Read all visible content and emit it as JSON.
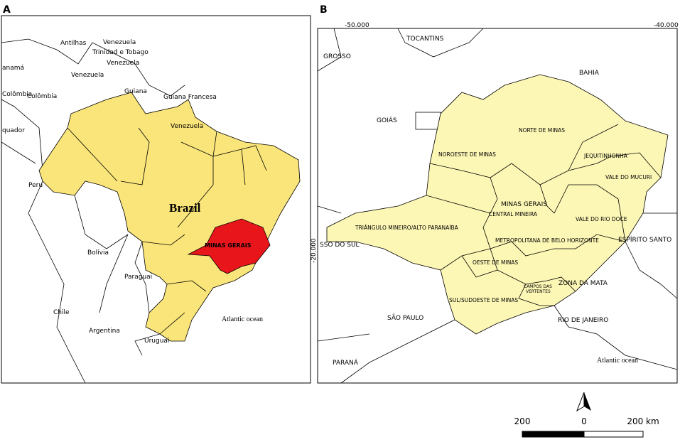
{
  "panel_a": {
    "label": "A",
    "labels": [
      "Antilhas",
      "Venezuela",
      "Trinidad e Tobago",
      "Venezuela",
      "Venezuela",
      "Guiana",
      "Guiana Francesa",
      "Colômbia",
      "Colômbia",
      "quador",
      "Peru",
      "Venezuela",
      "Brazil",
      "MINAS GERAIS",
      "Bolívia",
      "Paraguai",
      "Chile",
      "Argentina",
      "Uruguai",
      "Atlantic ocean",
      "anamá"
    ]
  },
  "panel_b": {
    "label": "B",
    "coordinates": [
      "-50.000",
      "-40.000",
      "-20.000"
    ],
    "labels": [
      "TOCANTINS",
      "GROSSO",
      "BAHIA",
      "GOIÁS",
      "NORTE DE MINAS",
      "NOROESTE DE MINAS",
      "JEQUITINHONHA",
      "VALE DO MUCURI",
      "MINAS GERAIS",
      "CENTRAL MINEIRA",
      "VALE DO RIO DOCE",
      "TRIÂNGULO MINEIRO/ALTO PARANAÍBA",
      "SSO DO SUL",
      "METROPOLITANA DE BELO HORIZONTE",
      "ESPÍRITO SANTO",
      "OESTE DE MINAS",
      "CAMPOS DAS",
      "VERTENTES",
      "ZONA DA MATA",
      "SUL/SUDOESTE DE MINAS",
      "SÃO PAULO",
      "RIO DE JANEIRO",
      "PARANÁ",
      "Atlantic ocean"
    ]
  },
  "scale_bar": {
    "labels": [
      "200",
      "0",
      "200 km"
    ]
  }
}
